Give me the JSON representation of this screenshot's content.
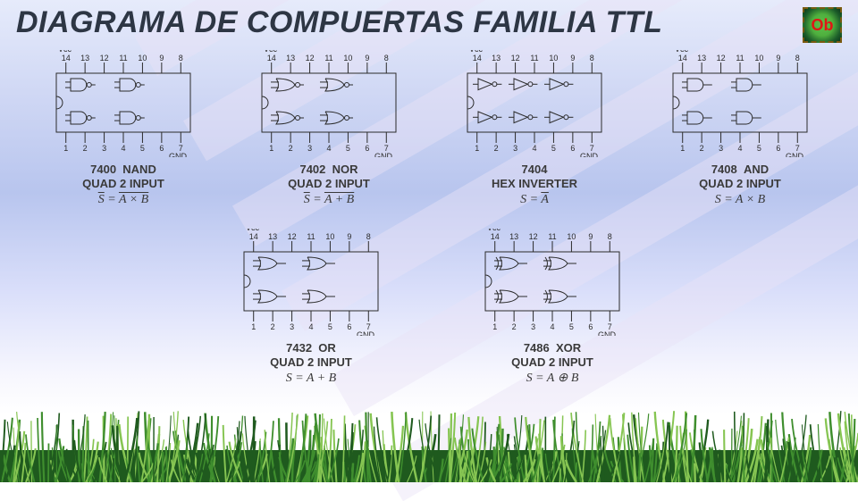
{
  "title": "DIAGRAMA DE COMPUERTAS FAMILIA TTL",
  "badge_text": "Ob",
  "colors": {
    "bg_top": "#e6ebfb",
    "bg_mid": "#b8c5ee",
    "bg_bottom": "#ffffff",
    "ray": "#e8e2f6",
    "title": "#2d3644",
    "chip_stroke": "#2b2b2b",
    "grass_dark": "#1f5a1e",
    "grass_mid": "#3f8e2e",
    "grass_light": "#86c552"
  },
  "chip": {
    "vcc_label": "Vcc",
    "gnd_label": "GND",
    "top_pins": [
      "14",
      "13",
      "12",
      "11",
      "10",
      "9",
      "8"
    ],
    "bottom_pins": [
      "1",
      "2",
      "3",
      "4",
      "5",
      "6",
      "7"
    ],
    "body_w": 150,
    "body_h": 66,
    "pin_len": 12,
    "stroke_color": "#2b2b2b",
    "label_fontsize": 9
  },
  "gates": [
    {
      "id": "7400",
      "name": "NAND",
      "sub": "QUAD 2 INPUT",
      "formula_html": "<span class='bar'>S</span> = <span class='bar'>A × B</span>",
      "shape": "nand",
      "count": 4
    },
    {
      "id": "7402",
      "name": "NOR",
      "sub": "QUAD 2 INPUT",
      "formula_html": "<span class='bar'>S</span> = <span class='bar'>A + B</span>",
      "shape": "nor",
      "count": 4
    },
    {
      "id": "7404",
      "name": "",
      "sub": "HEX INVERTER",
      "formula_html": "S = <span class='bar'>A</span>",
      "shape": "not",
      "count": 6
    },
    {
      "id": "7408",
      "name": "AND",
      "sub": "QUAD 2 INPUT",
      "formula_html": "S = A × B",
      "shape": "and",
      "count": 4
    },
    {
      "id": "7432",
      "name": "OR",
      "sub": "QUAD 2 INPUT",
      "formula_html": "S = A + B",
      "shape": "or",
      "count": 4
    },
    {
      "id": "7486",
      "name": "XOR",
      "sub": "QUAD 2 INPUT",
      "formula_html": "S = A ⊕ B",
      "shape": "xor",
      "count": 4
    }
  ],
  "rays": {
    "count": 6,
    "gap": 110,
    "height": 52,
    "angle_deg": -30,
    "opacity": 0.45
  }
}
